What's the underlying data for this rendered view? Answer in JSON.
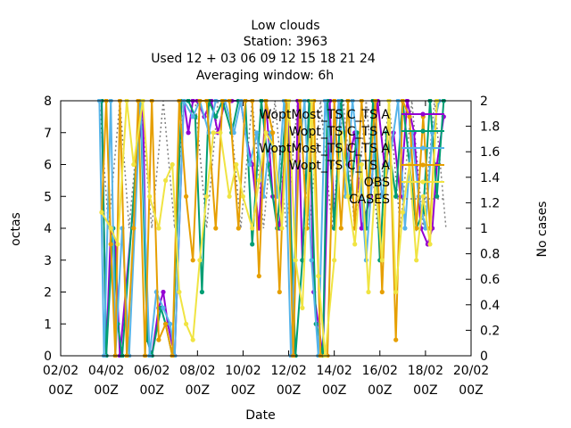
{
  "chart_data": {
    "type": "line",
    "title_lines": [
      "Low clouds",
      "Station:     3963",
      "Used  12 + 03 06 09 12 15 18 21 24",
      "Averaging window:  6h"
    ],
    "xlabel": "Date",
    "ylabel": "octas",
    "y2label": "No cases",
    "x_ticks": [
      {
        "l1": "02/02",
        "l2": "00Z",
        "day": 2
      },
      {
        "l1": "04/02",
        "l2": "00Z",
        "day": 4
      },
      {
        "l1": "06/02",
        "l2": "00Z",
        "day": 6
      },
      {
        "l1": "08/02",
        "l2": "00Z",
        "day": 8
      },
      {
        "l1": "10/02",
        "l2": "00Z",
        "day": 10
      },
      {
        "l1": "12/02",
        "l2": "00Z",
        "day": 12
      },
      {
        "l1": "14/02",
        "l2": "00Z",
        "day": 14
      },
      {
        "l1": "16/02",
        "l2": "00Z",
        "day": 16
      },
      {
        "l1": "18/02",
        "l2": "00Z",
        "day": 18
      },
      {
        "l1": "20/02",
        "l2": "00Z",
        "day": 20
      }
    ],
    "xlim": [
      2,
      20
    ],
    "ylim": [
      0,
      8
    ],
    "y2lim": [
      0,
      2
    ],
    "y_ticks": [
      "0",
      "1",
      "2",
      "3",
      "4",
      "5",
      "6",
      "7",
      "8"
    ],
    "y2_ticks": [
      "0",
      "0.2",
      "0.4",
      "0.6",
      "0.8",
      "1",
      "1.2",
      "1.4",
      "1.6",
      "1.8",
      "2"
    ],
    "legend_position": "top-right",
    "series": [
      {
        "name": "WoptMostTSCTSA",
        "legend_label": "WoptMost_TS C_TS A",
        "color": "#9400d3",
        "marker": "circle",
        "points": [
          [
            3.8,
            8
          ],
          [
            4.0,
            0
          ],
          [
            4.2,
            4
          ],
          [
            4.4,
            3.5
          ],
          [
            4.6,
            0
          ],
          [
            5.6,
            8
          ],
          [
            5.8,
            0.5
          ],
          [
            6.0,
            0
          ],
          [
            6.3,
            1.5
          ],
          [
            6.5,
            2
          ],
          [
            6.7,
            1
          ],
          [
            7.0,
            0
          ],
          [
            7.4,
            8
          ],
          [
            7.6,
            7
          ],
          [
            7.8,
            8
          ],
          [
            8.0,
            8
          ],
          [
            8.3,
            7.5
          ],
          [
            8.6,
            8
          ],
          [
            8.9,
            7
          ],
          [
            9.2,
            8
          ],
          [
            9.5,
            8
          ],
          [
            9.9,
            8
          ],
          [
            10.1,
            7
          ],
          [
            10.4,
            6
          ],
          [
            10.7,
            4
          ],
          [
            11.0,
            8
          ],
          [
            11.3,
            5
          ],
          [
            11.6,
            4
          ],
          [
            12.0,
            8
          ],
          [
            12.2,
            0
          ],
          [
            12.4,
            8
          ],
          [
            12.6,
            3
          ],
          [
            12.9,
            8
          ],
          [
            13.1,
            2
          ],
          [
            13.3,
            1
          ],
          [
            13.5,
            0
          ],
          [
            13.8,
            8
          ],
          [
            14.0,
            4
          ],
          [
            14.3,
            8
          ],
          [
            14.6,
            6
          ],
          [
            14.9,
            7
          ],
          [
            15.2,
            4
          ],
          [
            15.6,
            5
          ],
          [
            15.9,
            8
          ],
          [
            16.2,
            6
          ],
          [
            16.6,
            7
          ],
          [
            16.9,
            5
          ],
          [
            17.2,
            8
          ],
          [
            17.5,
            7
          ],
          [
            17.8,
            4
          ],
          [
            18.1,
            3.5
          ],
          [
            18.3,
            4
          ],
          [
            18.5,
            6
          ],
          [
            18.8,
            7.5
          ]
        ]
      },
      {
        "name": "WoptTSCTSA",
        "legend_label": "Wopt_TS C_TS A",
        "color": "#009e73",
        "marker": "circle",
        "points": [
          [
            3.8,
            8
          ],
          [
            4.0,
            0
          ],
          [
            4.3,
            4
          ],
          [
            4.5,
            1
          ],
          [
            4.7,
            0
          ],
          [
            5.5,
            8
          ],
          [
            5.8,
            0.5
          ],
          [
            6.0,
            0
          ],
          [
            6.4,
            1.5
          ],
          [
            6.6,
            1
          ],
          [
            6.9,
            0
          ],
          [
            7.3,
            8
          ],
          [
            7.6,
            8
          ],
          [
            7.9,
            7.5
          ],
          [
            8.2,
            2
          ],
          [
            8.5,
            8
          ],
          [
            8.8,
            7.5
          ],
          [
            9.1,
            8
          ],
          [
            9.5,
            7
          ],
          [
            9.8,
            8
          ],
          [
            10.1,
            8
          ],
          [
            10.4,
            3.5
          ],
          [
            10.8,
            8
          ],
          [
            11.1,
            6
          ],
          [
            11.5,
            4
          ],
          [
            11.9,
            8
          ],
          [
            12.3,
            0
          ],
          [
            12.6,
            3
          ],
          [
            12.9,
            8
          ],
          [
            13.2,
            1
          ],
          [
            13.5,
            0
          ],
          [
            13.7,
            8
          ],
          [
            14.0,
            4
          ],
          [
            14.3,
            8
          ],
          [
            14.7,
            5
          ],
          [
            15.0,
            7
          ],
          [
            15.4,
            4
          ],
          [
            15.7,
            8
          ],
          [
            16.0,
            3
          ],
          [
            16.3,
            7
          ],
          [
            16.7,
            5
          ],
          [
            17.0,
            8
          ],
          [
            17.3,
            6
          ],
          [
            17.6,
            4
          ],
          [
            17.9,
            4.5
          ],
          [
            18.2,
            8
          ],
          [
            18.5,
            5
          ],
          [
            18.8,
            8
          ]
        ]
      },
      {
        "name": "WoptMostTSCTSA2",
        "legend_label": "WoptMost_TS C_TS A",
        "color": "#56b4e9",
        "marker": "circle",
        "points": [
          [
            3.7,
            8
          ],
          [
            3.9,
            0
          ],
          [
            4.2,
            8
          ],
          [
            4.4,
            0
          ],
          [
            4.7,
            4
          ],
          [
            5.0,
            0
          ],
          [
            5.5,
            8
          ],
          [
            5.9,
            0
          ],
          [
            6.2,
            2
          ],
          [
            6.5,
            1.5
          ],
          [
            6.8,
            1
          ],
          [
            7.0,
            0
          ],
          [
            7.4,
            8
          ],
          [
            7.8,
            7.5
          ],
          [
            8.1,
            8
          ],
          [
            8.5,
            7
          ],
          [
            8.8,
            8
          ],
          [
            9.2,
            8
          ],
          [
            9.6,
            7
          ],
          [
            9.9,
            8
          ],
          [
            10.3,
            6
          ],
          [
            10.6,
            7
          ],
          [
            10.9,
            5
          ],
          [
            11.2,
            7
          ],
          [
            11.5,
            5
          ],
          [
            11.8,
            8
          ],
          [
            12.1,
            0
          ],
          [
            12.4,
            6
          ],
          [
            12.7,
            8
          ],
          [
            13.0,
            3
          ],
          [
            13.3,
            0
          ],
          [
            13.6,
            8
          ],
          [
            13.9,
            6
          ],
          [
            14.2,
            8
          ],
          [
            14.5,
            5
          ],
          [
            14.8,
            8
          ],
          [
            15.1,
            6
          ],
          [
            15.4,
            3
          ],
          [
            15.8,
            7
          ],
          [
            16.1,
            5
          ],
          [
            16.4,
            6
          ],
          [
            16.8,
            8
          ],
          [
            17.1,
            4
          ],
          [
            17.4,
            7
          ],
          [
            17.7,
            5
          ],
          [
            18.0,
            4
          ],
          [
            18.3,
            7
          ],
          [
            18.6,
            8
          ]
        ]
      },
      {
        "name": "WoptTSCTSA2",
        "legend_label": "Wopt_TS C_TS A",
        "color": "#e69f00",
        "marker": "circle",
        "points": [
          [
            3.8,
            4.5
          ],
          [
            4.0,
            8
          ],
          [
            4.2,
            3.5
          ],
          [
            4.4,
            0
          ],
          [
            4.6,
            8
          ],
          [
            4.9,
            0
          ],
          [
            5.2,
            4
          ],
          [
            5.4,
            8
          ],
          [
            5.7,
            0
          ],
          [
            6.0,
            8
          ],
          [
            6.3,
            0.5
          ],
          [
            6.6,
            1
          ],
          [
            6.9,
            0
          ],
          [
            7.2,
            8
          ],
          [
            7.5,
            5
          ],
          [
            7.8,
            3
          ],
          [
            8.1,
            8
          ],
          [
            8.4,
            8
          ],
          [
            8.8,
            4
          ],
          [
            9.1,
            8
          ],
          [
            9.4,
            8
          ],
          [
            9.8,
            4
          ],
          [
            10.1,
            8
          ],
          [
            10.4,
            8
          ],
          [
            10.7,
            2.5
          ],
          [
            11.0,
            8
          ],
          [
            11.3,
            7
          ],
          [
            11.6,
            2
          ],
          [
            11.9,
            8
          ],
          [
            12.2,
            0
          ],
          [
            12.5,
            8
          ],
          [
            12.8,
            4
          ],
          [
            13.1,
            8
          ],
          [
            13.4,
            0
          ],
          [
            13.7,
            0
          ],
          [
            14.0,
            8
          ],
          [
            14.3,
            4
          ],
          [
            14.6,
            8
          ],
          [
            14.9,
            4
          ],
          [
            15.2,
            8
          ],
          [
            15.5,
            5
          ],
          [
            15.8,
            8
          ],
          [
            16.1,
            2
          ],
          [
            16.4,
            8
          ],
          [
            16.7,
            0.5
          ],
          [
            17.0,
            8
          ],
          [
            17.3,
            7.5
          ],
          [
            17.6,
            4
          ],
          [
            17.9,
            7.5
          ],
          [
            18.2,
            4
          ],
          [
            18.5,
            8
          ]
        ]
      },
      {
        "name": "OBS",
        "legend_label": "OBS",
        "color": "#f0e442",
        "marker": "circle",
        "points": [
          [
            3.8,
            4.5
          ],
          [
            4.2,
            4
          ],
          [
            4.5,
            3.5
          ],
          [
            4.9,
            8
          ],
          [
            5.2,
            6
          ],
          [
            5.6,
            8
          ],
          [
            5.9,
            5
          ],
          [
            6.3,
            4
          ],
          [
            6.6,
            5.5
          ],
          [
            6.9,
            6
          ],
          [
            7.2,
            2
          ],
          [
            7.5,
            1
          ],
          [
            7.8,
            0.5
          ],
          [
            8.1,
            3
          ],
          [
            8.4,
            5
          ],
          [
            8.7,
            7
          ],
          [
            9.0,
            7
          ],
          [
            9.4,
            5
          ],
          [
            9.7,
            6
          ],
          [
            10.0,
            5
          ],
          [
            10.4,
            4
          ],
          [
            10.7,
            5.5
          ],
          [
            11.0,
            7
          ],
          [
            11.4,
            6.5
          ],
          [
            11.7,
            4
          ],
          [
            12.0,
            8
          ],
          [
            12.3,
            3
          ],
          [
            12.6,
            1.5
          ],
          [
            13.0,
            8
          ],
          [
            13.3,
            2.5
          ],
          [
            13.6,
            0
          ],
          [
            14.0,
            3
          ],
          [
            14.3,
            7
          ],
          [
            14.6,
            5
          ],
          [
            14.9,
            3.5
          ],
          [
            15.2,
            6
          ],
          [
            15.5,
            2
          ],
          [
            15.8,
            5.5
          ],
          [
            16.1,
            3
          ],
          [
            16.4,
            8
          ],
          [
            16.7,
            2
          ],
          [
            17.0,
            4.5
          ],
          [
            17.3,
            6
          ],
          [
            17.6,
            3
          ],
          [
            17.9,
            5
          ],
          [
            18.2,
            3.5
          ],
          [
            18.5,
            8
          ]
        ]
      }
    ],
    "cases_series": {
      "name": "CASES",
      "legend_label": "CASES",
      "color": "#808080",
      "style": "dotted",
      "points": [
        [
          3.7,
          2
        ],
        [
          4.1,
          1
        ],
        [
          4.6,
          2
        ],
        [
          5.0,
          1
        ],
        [
          5.5,
          2
        ],
        [
          6.0,
          1
        ],
        [
          6.5,
          2
        ],
        [
          7.0,
          1
        ],
        [
          7.4,
          2
        ],
        [
          7.9,
          2
        ],
        [
          8.4,
          1
        ],
        [
          8.9,
          2
        ],
        [
          9.4,
          2
        ],
        [
          9.9,
          1
        ],
        [
          10.4,
          2
        ],
        [
          10.9,
          1
        ],
        [
          11.4,
          2
        ],
        [
          11.9,
          1
        ],
        [
          12.4,
          2
        ],
        [
          12.9,
          1
        ],
        [
          13.4,
          2
        ],
        [
          13.9,
          1
        ],
        [
          14.4,
          2
        ],
        [
          14.9,
          1
        ],
        [
          15.4,
          2
        ],
        [
          15.9,
          1
        ],
        [
          16.4,
          2
        ],
        [
          16.9,
          1
        ],
        [
          17.4,
          2
        ],
        [
          17.9,
          1
        ],
        [
          18.4,
          2
        ],
        [
          18.9,
          1
        ]
      ]
    }
  }
}
